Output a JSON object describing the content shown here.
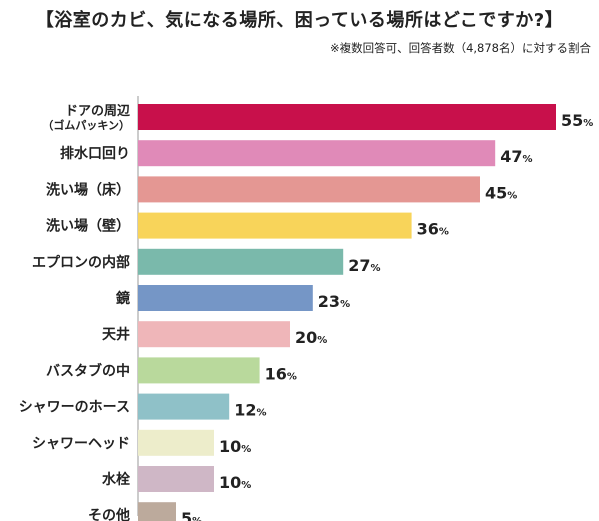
{
  "chart_data": {
    "type": "bar",
    "orientation": "horizontal",
    "title": "【浴室のカビ、気になる場所、困っている場所はどこですか?】",
    "subtitle": "※複数回答可、回答者数（4,878名）に対する割合",
    "unit": "%",
    "xlim": [
      0,
      55
    ],
    "grid": false,
    "categories": [
      {
        "line1": "ドアの周辺",
        "line2": "（ゴムパッキン）"
      },
      {
        "line1": "排水口回り",
        "line2": ""
      },
      {
        "line1": "洗い場（床）",
        "line2": ""
      },
      {
        "line1": "洗い場（壁）",
        "line2": ""
      },
      {
        "line1": "エプロンの内部",
        "line2": ""
      },
      {
        "line1": "鏡",
        "line2": ""
      },
      {
        "line1": "天井",
        "line2": ""
      },
      {
        "line1": "バスタブの中",
        "line2": ""
      },
      {
        "line1": "シャワーのホース",
        "line2": ""
      },
      {
        "line1": "シャワーヘッド",
        "line2": ""
      },
      {
        "line1": "水栓",
        "line2": ""
      },
      {
        "line1": "その他",
        "line2": ""
      }
    ],
    "values": [
      55,
      47,
      45,
      36,
      27,
      23,
      20,
      16,
      12,
      10,
      10,
      5
    ],
    "colors": [
      "#c8104b",
      "#e08ab8",
      "#e49793",
      "#f8d45a",
      "#7ab9ab",
      "#7596c6",
      "#efb6b9",
      "#b9d99c",
      "#8fc1c8",
      "#ededcb",
      "#cfb7c6",
      "#bcaa9c"
    ]
  }
}
